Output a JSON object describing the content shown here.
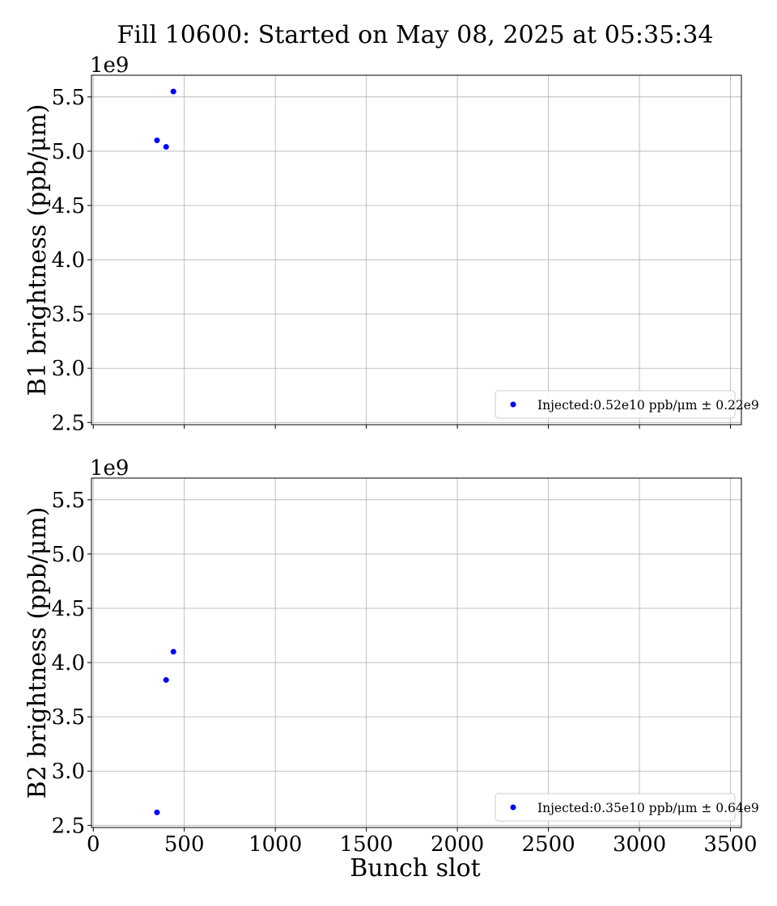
{
  "figure": {
    "title": "Fill 10600: Started on May 08, 2025 at 05:35:34",
    "xlabel": "Bunch slot"
  },
  "chart_data": [
    {
      "type": "scatter",
      "ylabel": "B1 brightness (ppb/μm)",
      "offset_label": "1e9",
      "xlim": [
        -10,
        3560
      ],
      "ylim": [
        2.48,
        5.7
      ],
      "xticks": [
        0,
        500,
        1000,
        1500,
        2000,
        2500,
        3000,
        3500
      ],
      "yticks": [
        2.5,
        3.0,
        3.5,
        4.0,
        4.5,
        5.0,
        5.5
      ],
      "grid": true,
      "legend_position": "lower-right",
      "series": [
        {
          "name": "Injected:0.52e10 ppb/μm ± 0.22e9",
          "color": "#0000ff",
          "x": [
            350,
            400,
            440
          ],
          "y": [
            5.1,
            5.04,
            5.55
          ]
        }
      ]
    },
    {
      "type": "scatter",
      "ylabel": "B2 brightness (ppb/μm)",
      "offset_label": "1e9",
      "xlim": [
        -10,
        3560
      ],
      "ylim": [
        2.48,
        5.7
      ],
      "xticks": [
        0,
        500,
        1000,
        1500,
        2000,
        2500,
        3000,
        3500
      ],
      "yticks": [
        2.5,
        3.0,
        3.5,
        4.0,
        4.5,
        5.0,
        5.5
      ],
      "grid": true,
      "legend_position": "lower-right",
      "series": [
        {
          "name": "Injected:0.35e10 ppb/μm ± 0.64e9",
          "color": "#0000ff",
          "x": [
            350,
            400,
            440
          ],
          "y": [
            2.62,
            3.84,
            4.1
          ]
        }
      ]
    }
  ]
}
